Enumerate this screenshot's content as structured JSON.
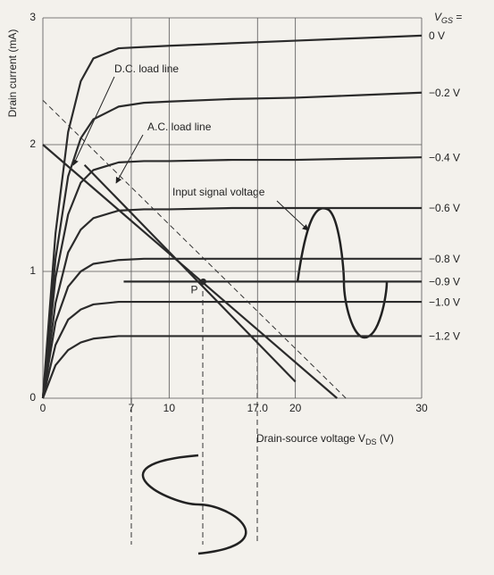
{
  "chart_data": {
    "type": "line",
    "ylabel": "Drain current (mA)",
    "xlabel_parts": [
      "Drain-source voltage V",
      "DS",
      " (V)"
    ],
    "legend_title_parts": [
      "V",
      "GS",
      " ="
    ],
    "annotation": "Input signal voltage",
    "xlim": [
      0,
      30
    ],
    "ylim": [
      0,
      3
    ],
    "xticks": [
      0,
      7,
      10,
      {
        "value": 17,
        "label": "17.0"
      },
      20,
      30
    ],
    "yticks": [
      0,
      1,
      2,
      3
    ],
    "grid": true,
    "color": "#2b2b2b",
    "series": [
      {
        "name": "0 V",
        "x": [
          0,
          1,
          2,
          3,
          4,
          6,
          8,
          10,
          15,
          20,
          25,
          30
        ],
        "values": [
          0,
          1.3,
          2.1,
          2.5,
          2.68,
          2.76,
          2.77,
          2.78,
          2.8,
          2.82,
          2.84,
          2.86
        ]
      },
      {
        "name": "−0.2 V",
        "x": [
          0,
          1,
          2,
          3,
          4,
          6,
          8,
          10,
          15,
          20,
          25,
          30
        ],
        "values": [
          0,
          1.1,
          1.75,
          2.05,
          2.2,
          2.3,
          2.33,
          2.34,
          2.36,
          2.37,
          2.39,
          2.41
        ]
      },
      {
        "name": "−0.4 V",
        "x": [
          0,
          1,
          2,
          3,
          4,
          6,
          8,
          10,
          15,
          20,
          25,
          30
        ],
        "values": [
          0,
          0.95,
          1.45,
          1.7,
          1.8,
          1.86,
          1.87,
          1.87,
          1.88,
          1.88,
          1.89,
          1.9
        ]
      },
      {
        "name": "−0.6 V",
        "x": [
          0,
          1,
          2,
          3,
          4,
          6,
          8,
          10,
          15,
          20,
          25,
          30
        ],
        "values": [
          0,
          0.75,
          1.15,
          1.33,
          1.42,
          1.48,
          1.49,
          1.49,
          1.5,
          1.5,
          1.5,
          1.5
        ]
      },
      {
        "name": "−0.8 V",
        "x": [
          0,
          1,
          2,
          3,
          4,
          6,
          8,
          10,
          15,
          20,
          25,
          30
        ],
        "values": [
          0,
          0.6,
          0.88,
          1.0,
          1.06,
          1.09,
          1.1,
          1.1,
          1.1,
          1.1,
          1.1,
          1.1
        ]
      },
      {
        "name": "−0.9 V",
        "x": [
          6.4,
          30
        ],
        "values": [
          0.92,
          0.92
        ]
      },
      {
        "name": "−1.0 V",
        "x": [
          0,
          1,
          2,
          3,
          4,
          6,
          8,
          10,
          15,
          20,
          25,
          30
        ],
        "values": [
          0,
          0.42,
          0.62,
          0.7,
          0.74,
          0.76,
          0.76,
          0.76,
          0.76,
          0.76,
          0.76,
          0.76
        ]
      },
      {
        "name": "−1.2 V",
        "x": [
          0,
          1,
          2,
          3,
          4,
          6,
          8,
          10,
          15,
          20,
          25,
          30
        ],
        "values": [
          0,
          0.26,
          0.38,
          0.44,
          0.47,
          0.49,
          0.49,
          0.49,
          0.49,
          0.49,
          0.49,
          0.49
        ]
      }
    ],
    "load_lines": [
      {
        "name": "D.C. load line",
        "x": [
          0,
          23.3
        ],
        "values": [
          2,
          0
        ]
      },
      {
        "name": "A.C. load line",
        "x": [
          3.3,
          20
        ],
        "values": [
          1.84,
          0.13
        ]
      }
    ],
    "dashed_line": {
      "x": [
        0,
        24
      ],
      "values": [
        2.35,
        0
      ]
    },
    "q_point": {
      "label": "P",
      "x": 12.7,
      "y": 0.92
    }
  }
}
